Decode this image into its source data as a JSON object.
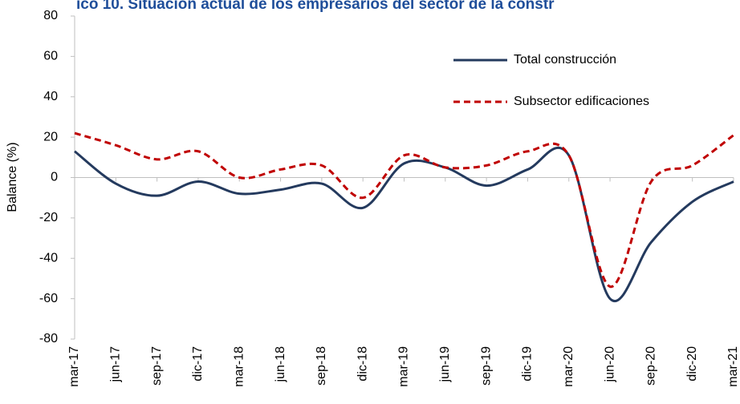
{
  "chart_data": {
    "type": "line",
    "title": "ico 10. Situación actual de los empresarios del sector de la constr",
    "y_label": "Balance (%)",
    "categories": [
      "mar-17",
      "jun-17",
      "sep-17",
      "dic-17",
      "mar-18",
      "jun-18",
      "sep-18",
      "dic-18",
      "mar-19",
      "jun-19",
      "sep-19",
      "dic-19",
      "mar-20",
      "jun-20",
      "sep-20",
      "dic-20",
      "mar-21"
    ],
    "series": [
      {
        "name": "Total construcción",
        "color": "#243a5e",
        "dash": "solid",
        "values": [
          13,
          -3,
          -9,
          -2,
          -8,
          -6,
          -3,
          -15,
          7,
          5,
          -4,
          4,
          11,
          -60,
          -32,
          -12,
          -2
        ]
      },
      {
        "name": "Subsector edificaciones",
        "color": "#c00000",
        "dash": "dashed",
        "values": [
          22,
          16,
          9,
          13,
          0,
          4,
          6,
          -10,
          11,
          5,
          6,
          13,
          11,
          -54,
          -2,
          6,
          21
        ]
      }
    ],
    "ylim": [
      -80,
      80
    ],
    "yticks": [
      -80,
      -60,
      -40,
      -20,
      0,
      20,
      40,
      60,
      80
    ],
    "grid": false,
    "legend": "upper right"
  }
}
